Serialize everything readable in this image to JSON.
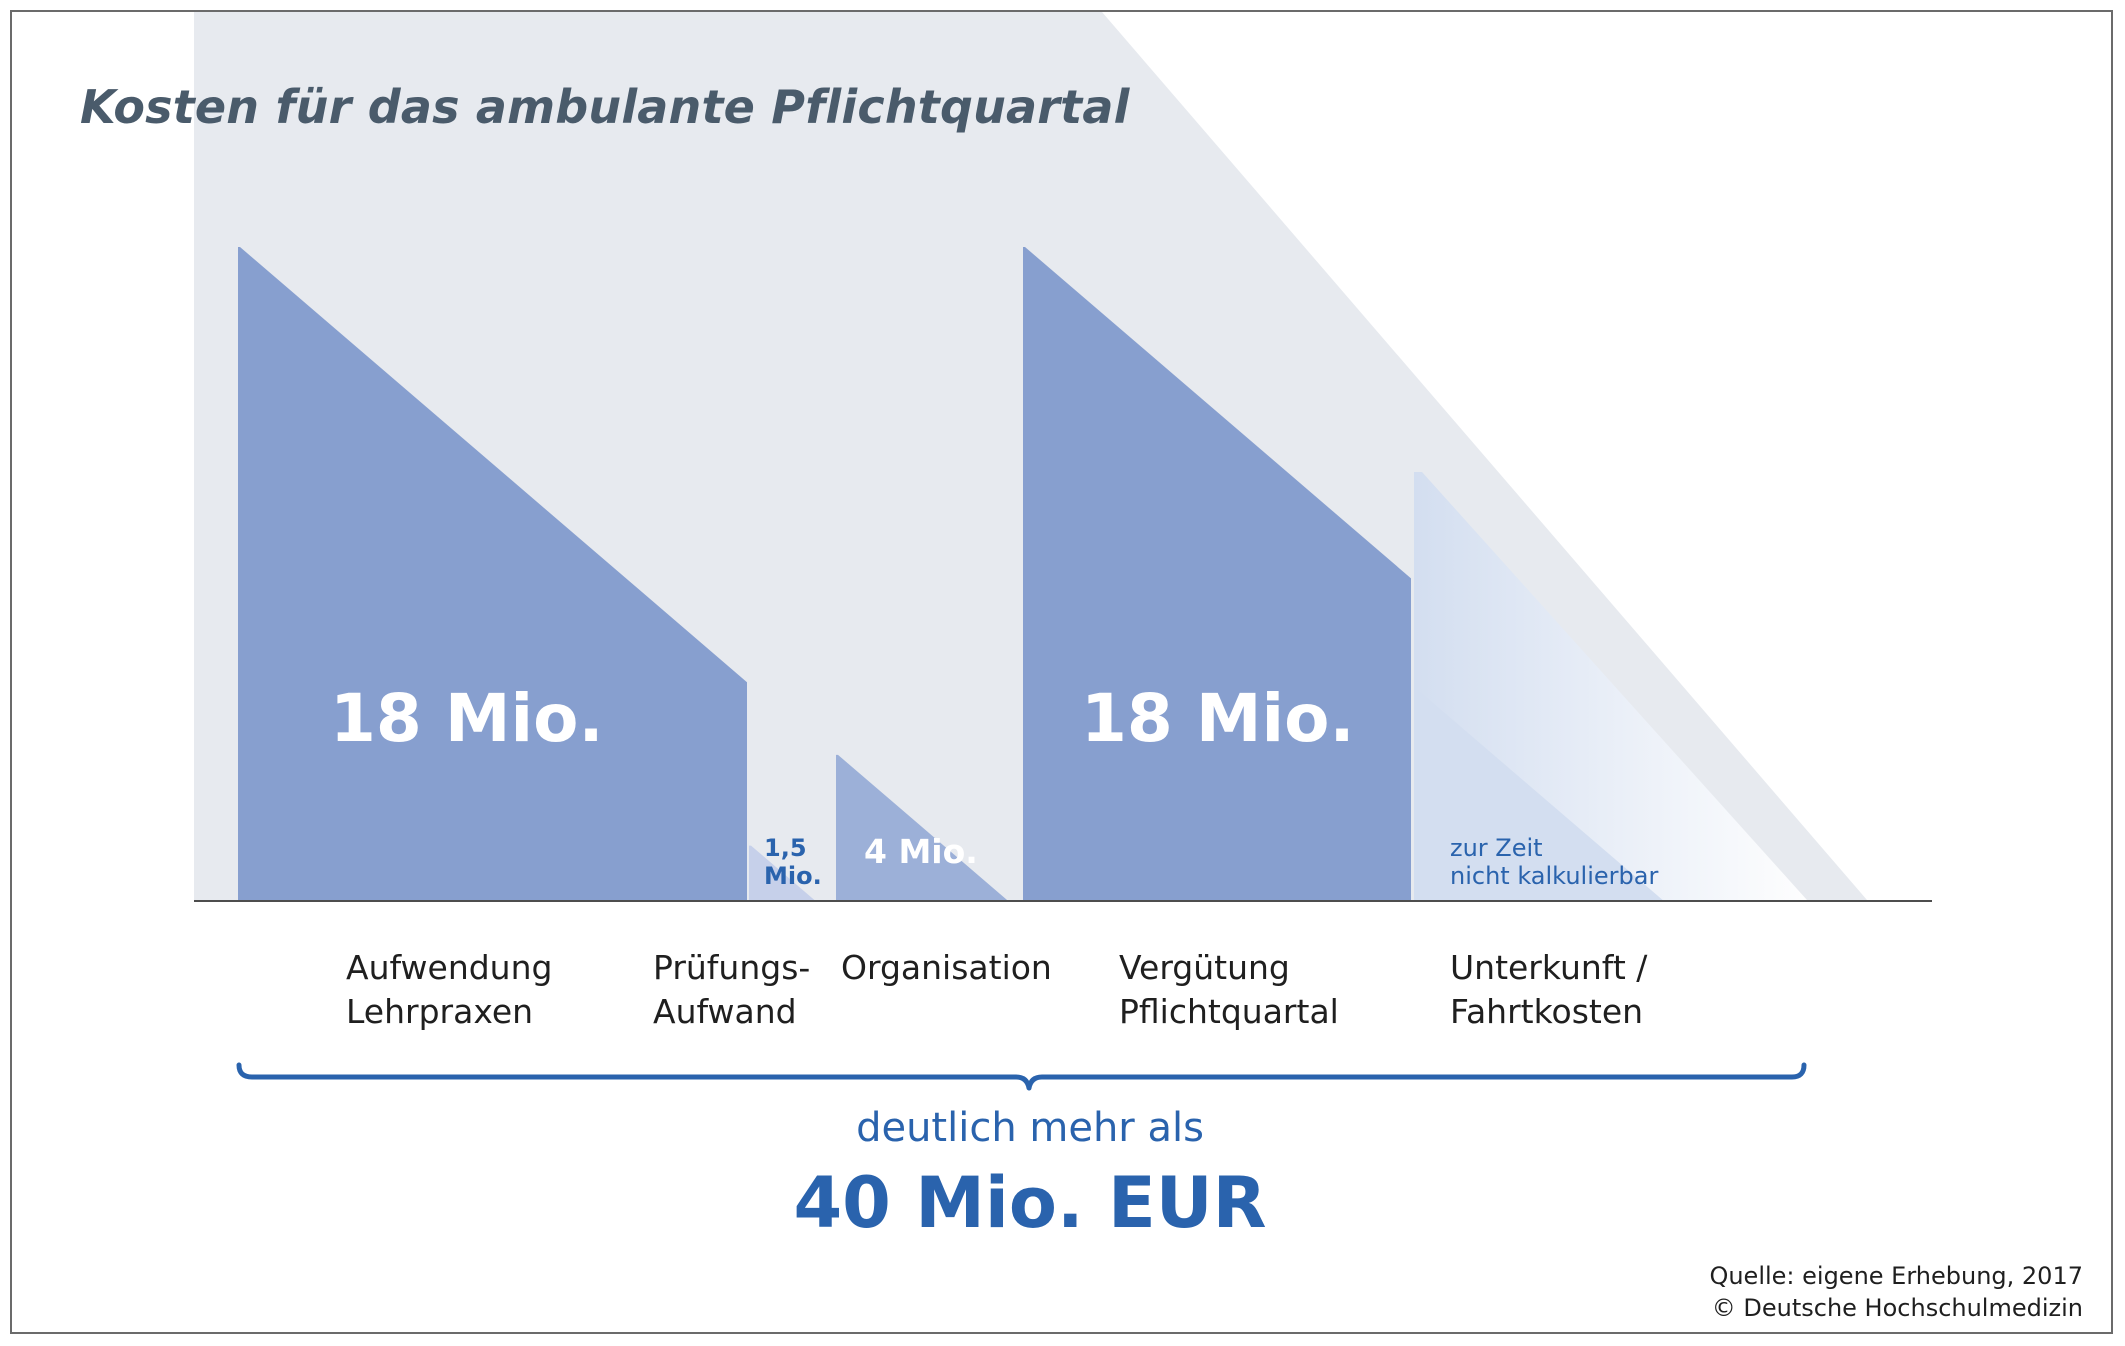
{
  "chart_data": {
    "type": "bar",
    "title": "Kosten für das ambulante Pflichtquartal",
    "categories": [
      [
        "Aufwendung",
        "Lehrpraxen"
      ],
      [
        "Prüfungs-",
        "Aufwand"
      ],
      [
        "Organisation"
      ],
      [
        "Vergütung",
        "Pflichtquartal"
      ],
      [
        "Unterkunft /",
        "Fahrtkosten"
      ]
    ],
    "values": [
      18,
      1.5,
      4,
      18,
      null
    ],
    "value_labels": [
      [
        "18 Mio."
      ],
      [
        "1,5",
        "Mio."
      ],
      [
        "4 Mio."
      ],
      [
        "18 Mio."
      ],
      [
        "zur Zeit",
        "nicht kalkulierbar"
      ]
    ],
    "total_prefix": "deutlich mehr als",
    "total_label": "40 Mio. EUR",
    "source_lines": [
      "Quelle: eigene Erhebung, 2017",
      "© Deutsche Hochschulmedizin"
    ],
    "colors": {
      "bar_main": "#879fcf",
      "bar_light": "#c6d0ea",
      "bar_mid": "#9cb0d8",
      "bar_note": "#d3def0",
      "background_shape": "#e7eaef",
      "accent_text": "#2a63ad",
      "title_text": "#4a5b6b"
    }
  }
}
